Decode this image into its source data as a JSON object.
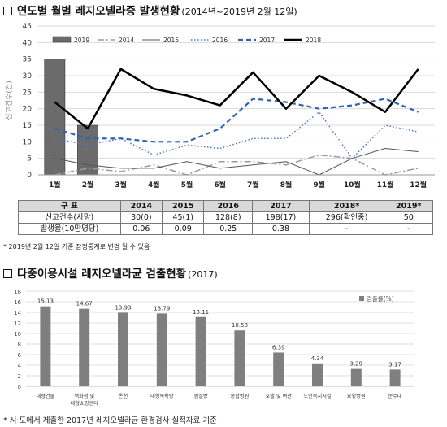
{
  "section1": {
    "title": "연도별 월별 레지오넬라증 발생현황",
    "subtitle": "(2014년~2019년 2월 12일)"
  },
  "section2": {
    "title": "다중이용시설 레지오넬라균 검출현황",
    "subtitle": "(2017)"
  },
  "table": {
    "headers": [
      "구 표",
      "2014",
      "2015",
      "2016",
      "2017",
      "2018*",
      "2019*"
    ],
    "rows": [
      {
        "label": "신고건수(사망)",
        "cells": [
          "30(0)",
          "45(1)",
          "128(8)",
          "198(17)",
          "296(확인중)",
          "50"
        ]
      },
      {
        "label": "발생율(10만명당)",
        "cells": [
          "0.06",
          "0.09",
          "0.25",
          "0.38",
          "-",
          "-"
        ]
      }
    ]
  },
  "note1": "* 2019년 2월 12일 기준 잠정통계로 변경 될 수 있음",
  "note2": "* 시·도에서 제출한 2017년 레지오넬라균 환경검사 실적자료 기준",
  "chart_data": [
    {
      "type": "line",
      "ylabel": "신고건수(건)",
      "ylim": [
        0,
        45
      ],
      "yticks": [
        0,
        5,
        10,
        15,
        20,
        25,
        30,
        35,
        40,
        45
      ],
      "categories": [
        "1월",
        "2월",
        "3월",
        "4월",
        "5월",
        "6월",
        "7월",
        "8월",
        "9월",
        "10월",
        "11월",
        "12월"
      ],
      "legend_position": "top",
      "series": [
        {
          "name": "2019",
          "kind": "bar",
          "color": "#6b6b6b",
          "values": [
            35,
            15,
            null,
            null,
            null,
            null,
            null,
            null,
            null,
            null,
            null,
            null
          ]
        },
        {
          "name": "2014",
          "kind": "line",
          "style": "dashdot",
          "color": "#9a9a9a",
          "values": [
            0,
            2,
            1,
            3,
            0,
            4,
            4,
            3,
            6,
            5,
            0,
            2
          ]
        },
        {
          "name": "2015",
          "kind": "line",
          "style": "solid-thin",
          "color": "#555555",
          "values": [
            5,
            3,
            2,
            2,
            4,
            2,
            3,
            4,
            0,
            5,
            8,
            7
          ]
        },
        {
          "name": "2016",
          "kind": "line",
          "style": "dotted",
          "color": "#4a78c2",
          "values": [
            11,
            9,
            11,
            6,
            9,
            8,
            11,
            11,
            19,
            5,
            15,
            13
          ]
        },
        {
          "name": "2017",
          "kind": "line",
          "style": "dashed",
          "color": "#2e64b0",
          "values": [
            14,
            11,
            11,
            10,
            10,
            14,
            23,
            22,
            20,
            21,
            23,
            19
          ]
        },
        {
          "name": "2018",
          "kind": "line",
          "style": "solid-thick",
          "color": "#000000",
          "values": [
            22,
            14,
            32,
            26,
            24,
            21,
            31,
            20,
            30,
            25,
            19,
            32
          ]
        }
      ]
    },
    {
      "type": "bar",
      "ylim": [
        0,
        18
      ],
      "yticks": [
        0,
        2,
        4,
        6,
        8,
        10,
        12,
        14,
        16,
        18
      ],
      "legend": "검출률(%)",
      "legend_position": "top-right",
      "color": "#7f7f7f",
      "categories": [
        "대형건물",
        "백화점 및 대형쇼핑센터",
        "온천",
        "대형목욕탕",
        "찜질방",
        "종합병원",
        "호텔 및 여관",
        "노인복지시설",
        "요양병원",
        "분수대"
      ],
      "values": [
        15.13,
        14.67,
        13.93,
        13.79,
        13.11,
        10.58,
        6.39,
        4.34,
        3.29,
        3.17
      ]
    }
  ]
}
